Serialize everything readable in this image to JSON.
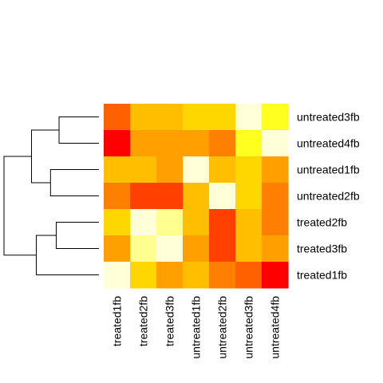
{
  "chart_data": {
    "type": "heatmap",
    "title": "",
    "xlabel": "",
    "ylabel": "",
    "rows": [
      "untreated3fb",
      "untreated4fb",
      "untreated1fb",
      "untreated2fb",
      "treated2fb",
      "treated3fb",
      "treated1fb"
    ],
    "columns": [
      "treated1fb",
      "treated2fb",
      "treated3fb",
      "untreated1fb",
      "untreated2fb",
      "untreated3fb",
      "untreated4fb"
    ],
    "values": [
      [
        3,
        6,
        6,
        7,
        7,
        11,
        9
      ],
      [
        0,
        5,
        5,
        5,
        4,
        9,
        11
      ],
      [
        6,
        6,
        5,
        11,
        6,
        7,
        5
      ],
      [
        4,
        2,
        2,
        6,
        11,
        7,
        4
      ],
      [
        7,
        11,
        10,
        6,
        2,
        6,
        4
      ],
      [
        5,
        10,
        11,
        5,
        2,
        6,
        5
      ],
      [
        11,
        7,
        5,
        6,
        4,
        3,
        0
      ]
    ],
    "value_range": [
      0,
      11
    ],
    "palette": [
      "#FF0000",
      "#FF2000",
      "#FF4000",
      "#FF6000",
      "#FF8000",
      "#FFA000",
      "#FFBF00",
      "#FFD700",
      "#FFEC00",
      "#FFFF20",
      "#FFFF90",
      "#FFFFD8"
    ],
    "row_dendrogram": {
      "merges": [
        {
          "a": "untreated3fb",
          "b": "untreated4fb",
          "height": 0.42
        },
        {
          "a": "treated2fb",
          "b": "treated3fb",
          "height": 0.45
        },
        {
          "a": "untreated1fb",
          "b": "untreated2fb",
          "height": 0.51
        },
        {
          "a": "treated2fb+treated3fb",
          "b": "treated1fb",
          "height": 0.66
        },
        {
          "a": "untreated3fb+untreated4fb",
          "b": "untreated1fb+untreated2fb",
          "height": 0.71
        },
        {
          "a": "untreated",
          "b": "treated",
          "height": 1.0
        }
      ]
    },
    "grid": false,
    "legend": "none"
  }
}
